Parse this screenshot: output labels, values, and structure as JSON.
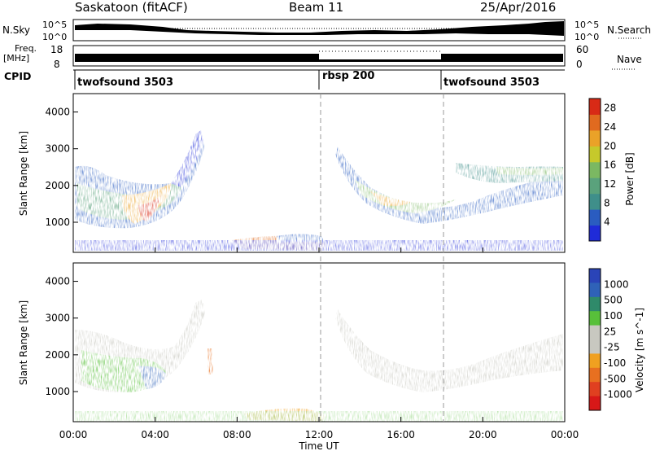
{
  "header": {
    "station": "Saskatoon (fitACF)",
    "beam": "Beam 11",
    "date": "25/Apr/2016"
  },
  "strip_labels": {
    "noise_left": "N.Sky",
    "noise_left_ticks": [
      "10^5",
      "10^0"
    ],
    "noise_right": "N.Search",
    "noise_right_ticks": [
      "10^5",
      "10^0"
    ],
    "freq_left_line1": "Freq.",
    "freq_left_line2": "[MHz]",
    "freq_left_ticks": [
      "18",
      "8"
    ],
    "freq_right": "Nave",
    "freq_right_ticks": [
      "60",
      "0"
    ],
    "cpid": "CPID"
  },
  "cpid_segments": [
    {
      "label": "twofsound 3503",
      "start_hour": 0
    },
    {
      "label": "rbsp 200",
      "start_hour": 12
    },
    {
      "label": "twofsound 3503",
      "start_hour": 18
    }
  ],
  "colors": {
    "power_scale": [
      "#1f2bd8",
      "#2a5cc0",
      "#3f8f8a",
      "#5aa27c",
      "#7bb862",
      "#c6c92b",
      "#eaa228",
      "#e06a1f",
      "#d82a16"
    ],
    "velocity_scale": [
      "#2a44b8",
      "#2f62b8",
      "#2f8a6a",
      "#58c03a",
      "#c8c8c0",
      "#c8c8c0",
      "#f0a020",
      "#e87020",
      "#e04020",
      "#d81818"
    ],
    "velocity_ground": "#8a8a8a"
  },
  "chart_data": [
    {
      "type": "heatmap",
      "title": "Power",
      "ylabel": "Slant Range [km]",
      "yticks": [
        1000,
        2000,
        3000,
        4000
      ],
      "colorbar_label": "Power [dB]",
      "colorbar_ticks": [
        4,
        8,
        12,
        16,
        20,
        24,
        28
      ],
      "colorbar_range": [
        0,
        30
      ],
      "regions": [
        {
          "x_start": 0.0,
          "x_end": 6.5,
          "y_start": 1000,
          "y_end": 2500,
          "value": 14
        },
        {
          "x_start": 2.5,
          "x_end": 4.5,
          "y_start": 1000,
          "y_end": 1400,
          "value": 24
        },
        {
          "x_start": 5.0,
          "x_end": 6.2,
          "y_start": 2000,
          "y_end": 3500,
          "value": 8
        },
        {
          "x_start": 8.5,
          "x_end": 12.5,
          "y_start": 350,
          "y_end": 500,
          "value": 18
        },
        {
          "x_start": 12.5,
          "x_end": 20.0,
          "y_start": 1200,
          "y_end": 3000,
          "value": 16
        },
        {
          "x_start": 20.0,
          "x_end": 24.0,
          "y_start": 1200,
          "y_end": 2800,
          "value": 12
        },
        {
          "x_start": 0.0,
          "x_end": 24.0,
          "y_start": 200,
          "y_end": 450,
          "value": 6
        }
      ]
    },
    {
      "type": "heatmap",
      "title": "Velocity",
      "ylabel": "Slant Range [km]",
      "yticks": [
        1000,
        2000,
        3000,
        4000
      ],
      "colorbar_label": "Velocity [m s^-1]",
      "colorbar_ticks": [
        1000,
        500,
        100,
        25,
        -25,
        -100,
        -500,
        -1000
      ],
      "regions": [
        {
          "x_start": 0.0,
          "x_end": 6.5,
          "y_start": 1400,
          "y_end": 2600,
          "value": 0
        },
        {
          "x_start": 0.5,
          "x_end": 4.5,
          "y_start": 900,
          "y_end": 1600,
          "value": 150
        },
        {
          "x_start": 12.5,
          "x_end": 24.0,
          "y_start": 1300,
          "y_end": 3000,
          "value": 0
        },
        {
          "x_start": 8.5,
          "x_end": 12.5,
          "y_start": 350,
          "y_end": 550,
          "value": -200
        }
      ]
    }
  ],
  "xaxis": {
    "label": "Time UT",
    "ticks": [
      "00:00",
      "04:00",
      "08:00",
      "12:00",
      "16:00",
      "20:00",
      "00:00"
    ],
    "ticks_hours": [
      0,
      4,
      8,
      12,
      16,
      20,
      24
    ],
    "range_hours": [
      0,
      24
    ]
  },
  "yaxis": {
    "range_km": [
      180,
      4500
    ]
  }
}
